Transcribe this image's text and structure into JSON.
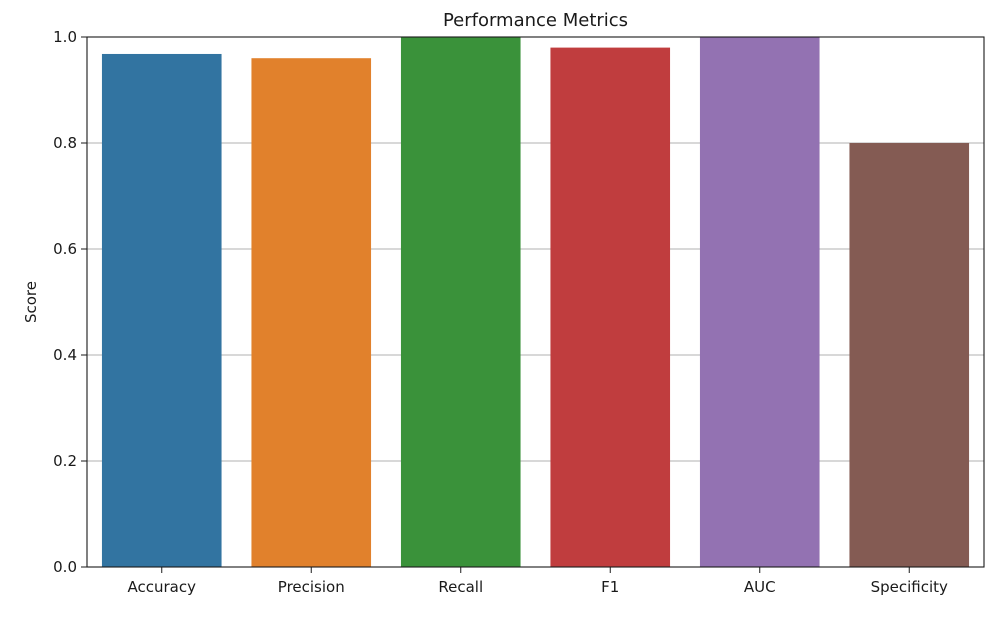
{
  "chart_data": {
    "type": "bar",
    "title": "Performance Metrics",
    "xlabel": "",
    "ylabel": "Score",
    "categories": [
      "Accuracy",
      "Precision",
      "Recall",
      "F1",
      "AUC",
      "Specificity"
    ],
    "values": [
      0.968,
      0.96,
      1.0,
      0.98,
      1.0,
      0.8
    ],
    "ylim": [
      0,
      1.0
    ],
    "yticks": [
      "0.0",
      "0.2",
      "0.4",
      "0.6",
      "0.8",
      "1.0"
    ],
    "grid": "horizontal",
    "colors": [
      "#3274a1",
      "#e1812c",
      "#3a923a",
      "#c03d3e",
      "#9372b2",
      "#845b53"
    ]
  }
}
